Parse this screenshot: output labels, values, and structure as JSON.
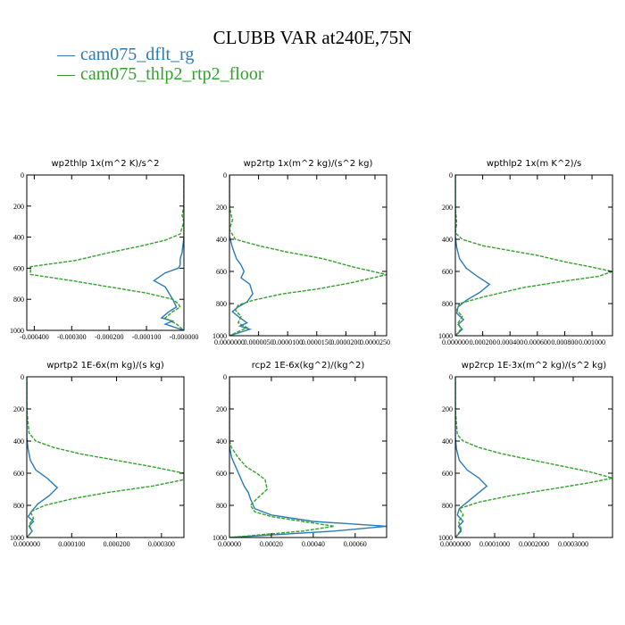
{
  "title": "CLUBB VAR at240E,75N",
  "colors": {
    "series0": "#2a7ab8",
    "series1": "#33a02c"
  },
  "legend": [
    "cam075_dflt_rg",
    "cam075_thlp2_rtp2_floor"
  ],
  "chart_data": [
    {
      "type": "line",
      "title": "wp2thlp   1x(m^2 K)/s^2",
      "ylim": [
        1000,
        0
      ],
      "xlim": [
        -0.00042,
        0.0
      ],
      "xticks": [
        "-0.000400",
        "-0.000300",
        "-0.000200",
        "-0.000100",
        "-0.000000"
      ],
      "xtick_values": [
        -0.0004,
        -0.0003,
        -0.0002,
        -0.0001,
        0.0
      ],
      "yticks": [
        "0",
        "200",
        "400",
        "600",
        "800",
        "1000"
      ],
      "ytick_values": [
        0,
        200,
        400,
        600,
        800,
        1000
      ],
      "series": [
        {
          "name": "cam075_dflt_rg",
          "x": [
            0,
            0,
            0,
            0,
            0,
            -5e-06,
            -1e-05,
            -1e-05,
            -1.5e-05,
            -5e-05,
            -8e-05,
            -5e-05,
            -4e-05,
            -3e-05,
            -2e-05,
            -4e-05,
            -6e-05,
            -3e-05,
            -5e-05,
            0
          ],
          "y": [
            0,
            100,
            200,
            300,
            400,
            500,
            540,
            580,
            600,
            630,
            680,
            720,
            760,
            800,
            850,
            880,
            920,
            940,
            960,
            1000
          ]
        },
        {
          "name": "cam075_thlp2_rtp2_floor",
          "x": [
            0,
            0,
            -5e-06,
            0,
            -1e-05,
            -5e-05,
            -0.00012,
            -0.0002,
            -0.00029,
            -0.00041,
            -0.00041,
            -0.0003,
            -0.0002,
            -0.0001,
            -3e-05,
            -1.5e-05,
            -1e-05,
            -3e-05,
            -5e-05,
            -2e-05,
            0
          ],
          "y": [
            0,
            200,
            260,
            300,
            380,
            420,
            460,
            500,
            550,
            590,
            640,
            680,
            720,
            760,
            800,
            830,
            850,
            880,
            920,
            960,
            1000
          ]
        }
      ]
    },
    {
      "type": "line",
      "title": "wp2rtp   1x(m^2 kg)/(s^2 kg)",
      "ylim": [
        1000,
        0
      ],
      "xlim": [
        0.0,
        2.7e-05
      ],
      "xticks": [
        "0.0000000",
        "0.0000050",
        "0.0000100",
        "0.0000150",
        "0.0000200",
        "0.0000250"
      ],
      "xtick_values": [
        0.0,
        5e-06,
        1e-05,
        1.5e-05,
        2e-05,
        2.5e-05
      ],
      "yticks": [
        "0",
        "200",
        "400",
        "600",
        "800",
        "1000"
      ],
      "ytick_values": [
        0,
        200,
        400,
        600,
        800,
        1000
      ],
      "series": [
        {
          "name": "cam075_dflt_rg",
          "x": [
            0.0,
            0.0,
            0.0,
            5e-07,
            1.2e-06,
            2e-06,
            2.5e-06,
            2e-06,
            3.5e-06,
            4e-06,
            3e-06,
            1.5e-06,
            5e-07,
            1.5e-06,
            3e-06,
            1.8e-06,
            3.5e-06,
            0.0
          ],
          "y": [
            0,
            200,
            380,
            450,
            520,
            560,
            600,
            640,
            680,
            740,
            790,
            820,
            850,
            880,
            920,
            940,
            960,
            1000
          ]
        },
        {
          "name": "cam075_thlp2_rtp2_floor",
          "x": [
            0.0,
            0.0,
            5e-07,
            0.0,
            1e-06,
            5e-06,
            1e-05,
            1.6e-05,
            2.1e-05,
            2.7e-05,
            2.1e-05,
            1.5e-05,
            9e-06,
            4e-06,
            1.5e-06,
            1e-06,
            2e-06,
            1.5e-06,
            3e-06,
            0.0
          ],
          "y": [
            0,
            200,
            280,
            340,
            400,
            440,
            480,
            520,
            570,
            620,
            670,
            710,
            740,
            780,
            810,
            840,
            880,
            920,
            950,
            1000
          ]
        }
      ]
    },
    {
      "type": "line",
      "title": "wpthlp2   1x(m K^2)/s",
      "ylim": [
        1000,
        0
      ],
      "xlim": [
        0.0,
        0.00115
      ],
      "xticks": [
        "0.000000",
        "0.000200",
        "0.000400",
        "0.000600",
        "0.000800",
        "0.001000"
      ],
      "xtick_values": [
        0.0,
        0.0002,
        0.0004,
        0.0006,
        0.0008,
        0.001
      ],
      "yticks": [
        "0",
        "200",
        "400",
        "600",
        "800",
        "1000"
      ],
      "ytick_values": [
        0,
        200,
        400,
        600,
        800,
        1000
      ],
      "series": [
        {
          "name": "cam075_dflt_rg",
          "x": [
            0.0,
            0.0,
            0.0,
            1e-05,
            3e-05,
            8e-05,
            0.00016,
            0.00025,
            0.00018,
            8e-05,
            2e-05,
            1e-05,
            6e-05,
            2e-05,
            5e-05,
            0.0
          ],
          "y": [
            0,
            200,
            380,
            450,
            520,
            580,
            630,
            680,
            730,
            780,
            820,
            860,
            900,
            930,
            960,
            1000
          ]
        },
        {
          "name": "cam075_thlp2_rtp2_floor",
          "x": [
            0.0,
            0.0,
            1e-05,
            0.0,
            5e-05,
            0.0002,
            0.0004,
            0.0006,
            0.0008,
            0.00098,
            0.00115,
            0.00105,
            0.0008,
            0.0005,
            0.0002,
            3e-05,
            1e-05,
            5e-05,
            2e-05,
            4e-05,
            0.0
          ],
          "y": [
            0,
            200,
            300,
            360,
            400,
            440,
            470,
            500,
            540,
            570,
            600,
            630,
            660,
            700,
            760,
            800,
            840,
            880,
            920,
            960,
            1000
          ]
        }
      ]
    },
    {
      "type": "line",
      "title": "wprtp2   1E-6x(m kg)/(s kg)",
      "ylim": [
        1000,
        0
      ],
      "xlim": [
        0.0,
        0.00035
      ],
      "xticks": [
        "0.000000",
        "0.000100",
        "0.000200",
        "0.000300"
      ],
      "xtick_values": [
        0.0,
        0.0001,
        0.0002,
        0.0003
      ],
      "yticks": [
        "0",
        "200",
        "400",
        "600",
        "800",
        "1000"
      ],
      "ytick_values": [
        0,
        200,
        400,
        600,
        800,
        1000
      ],
      "series": [
        {
          "name": "cam075_dflt_rg",
          "x": [
            0.0,
            0.0,
            0.0,
            3e-06,
            8e-06,
            2e-05,
            4.5e-05,
            6.8e-05,
            5e-05,
            2.5e-05,
            1e-05,
            3e-06,
            1.5e-05,
            5e-06,
            1.2e-05,
            0.0
          ],
          "y": [
            0,
            200,
            380,
            450,
            520,
            580,
            630,
            690,
            740,
            790,
            840,
            870,
            900,
            930,
            960,
            1000
          ]
        },
        {
          "name": "cam075_thlp2_rtp2_floor",
          "x": [
            0.0,
            0.0,
            5e-06,
            2e-05,
            6e-05,
            0.00012,
            0.0002,
            0.00028,
            0.00035,
            0.00035,
            0.00028,
            0.00018,
            0.0001,
            4e-05,
            8e-06,
            1.5e-05,
            5e-06,
            1.2e-05,
            0.0
          ],
          "y": [
            0,
            200,
            350,
            400,
            440,
            480,
            520,
            560,
            600,
            640,
            680,
            720,
            760,
            800,
            840,
            880,
            920,
            960,
            1000
          ]
        }
      ]
    },
    {
      "type": "line",
      "title": "rcp2   1E-6x(kg^2)/(kg^2)",
      "ylim": [
        1000,
        0
      ],
      "xlim": [
        0.0,
        0.00075
      ],
      "xticks": [
        "0.00000",
        "0.00020",
        "0.00040",
        "0.00060"
      ],
      "xtick_values": [
        0.0,
        0.0002,
        0.0004,
        0.0006
      ],
      "yticks": [
        "0",
        "200",
        "400",
        "600",
        "800",
        "1000"
      ],
      "ytick_values": [
        0,
        200,
        400,
        600,
        800,
        1000
      ],
      "series": [
        {
          "name": "cam075_dflt_rg",
          "x": [
            0.0,
            0.0,
            0.0,
            1e-05,
            3e-05,
            5e-05,
            7e-05,
            9e-05,
            0.0001,
            0.00012,
            0.0002,
            0.0004,
            0.00075,
            0.0005,
            0.0
          ],
          "y": [
            0,
            300,
            430,
            500,
            560,
            620,
            680,
            720,
            760,
            820,
            860,
            900,
            930,
            960,
            1000
          ]
        },
        {
          "name": "cam075_thlp2_rtp2_floor",
          "x": [
            0.0,
            0.0,
            0.0,
            1e-05,
            4e-05,
            8e-05,
            0.00013,
            0.00017,
            0.00018,
            0.00013,
            0.0001,
            0.00012,
            0.0002,
            0.00035,
            0.0005,
            0.00035,
            0.0
          ],
          "y": [
            0,
            300,
            400,
            440,
            500,
            560,
            600,
            640,
            700,
            760,
            800,
            840,
            870,
            900,
            930,
            960,
            1000
          ]
        }
      ]
    },
    {
      "type": "line",
      "title": "wp2rcp   1E-3x(m^2 kg)/(s^2 kg)",
      "ylim": [
        1000,
        0
      ],
      "xlim": [
        0.0,
        0.0004
      ],
      "xticks": [
        "0.0000000",
        "0.0001000",
        "0.0002000",
        "0.0003000"
      ],
      "xtick_values": [
        0.0,
        0.0001,
        0.0002,
        0.0003
      ],
      "yticks": [
        "0",
        "200",
        "400",
        "600",
        "800",
        "1000"
      ],
      "ytick_values": [
        0,
        200,
        400,
        600,
        800,
        1000
      ],
      "series": [
        {
          "name": "cam075_dflt_rg",
          "x": [
            0.0,
            0.0,
            0.0,
            3e-06,
            1e-05,
            3e-05,
            6e-05,
            8e-05,
            5.5e-05,
            3e-05,
            1e-05,
            5e-06,
            2e-05,
            8e-06,
            1.5e-05,
            0.0
          ],
          "y": [
            0,
            200,
            380,
            450,
            520,
            580,
            630,
            680,
            730,
            780,
            820,
            860,
            900,
            930,
            960,
            1000
          ]
        },
        {
          "name": "cam075_thlp2_rtp2_floor",
          "x": [
            0.0,
            0.0,
            5e-06,
            2e-05,
            6e-05,
            0.00012,
            0.0002,
            0.00028,
            0.00034,
            0.0004,
            0.00034,
            0.00024,
            0.00014,
            6e-05,
            1e-05,
            2e-05,
            8e-06,
            1.5e-05,
            0.0
          ],
          "y": [
            0,
            200,
            360,
            400,
            440,
            480,
            520,
            560,
            590,
            630,
            660,
            700,
            740,
            780,
            820,
            860,
            900,
            950,
            1000
          ]
        }
      ]
    }
  ]
}
